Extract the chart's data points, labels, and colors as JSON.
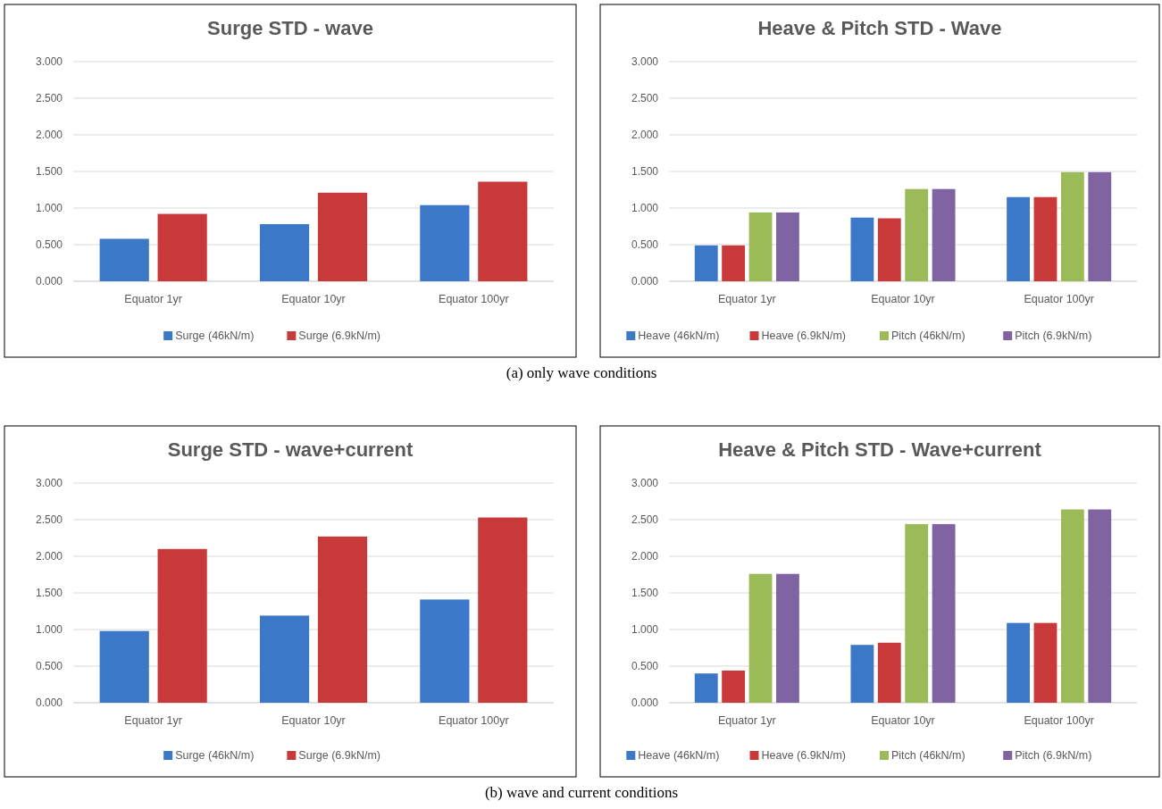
{
  "chart_data": [
    {
      "type": "bar",
      "title": "Surge STD - wave",
      "categories": [
        "Equator 1yr",
        "Equator 10yr",
        "Equator 100yr"
      ],
      "series": [
        {
          "name": "Surge (46kN/m)",
          "color": "#3c78c8",
          "values": [
            0.58,
            0.78,
            1.04
          ]
        },
        {
          "name": "Surge (6.9kN/m)",
          "color": "#c83a3a",
          "values": [
            0.92,
            1.21,
            1.36
          ]
        }
      ],
      "ylim": [
        0,
        3
      ],
      "yticks": [
        {
          "value": 0,
          "label": "0.000"
        },
        {
          "value": 0.5,
          "label": "0.500"
        },
        {
          "value": 1,
          "label": "1.000"
        },
        {
          "value": 1.5,
          "label": "1.500"
        },
        {
          "value": 2,
          "label": "2.000"
        },
        {
          "value": 2.5,
          "label": "2.500"
        },
        {
          "value": 3,
          "label": "3.000"
        }
      ],
      "grid": "y",
      "legend": "bottom",
      "annotations": [
        "(a) only wave conditions"
      ]
    },
    {
      "type": "bar",
      "title": "Heave & Pitch STD - Wave",
      "categories": [
        "Equator 1yr",
        "Equator 10yr",
        "Equator 100yr"
      ],
      "series": [
        {
          "name": "Heave (46kN/m)",
          "color": "#3c78c8",
          "values": [
            0.49,
            0.87,
            1.15
          ]
        },
        {
          "name": "Heave (6.9kN/m)",
          "color": "#c83a3a",
          "values": [
            0.49,
            0.86,
            1.15
          ]
        },
        {
          "name": "Pitch (46kN/m)",
          "color": "#9bbb59",
          "values": [
            0.94,
            1.26,
            1.49
          ]
        },
        {
          "name": "Pitch (6.9kN/m)",
          "color": "#8064a2",
          "values": [
            0.94,
            1.26,
            1.49
          ]
        }
      ],
      "ylim": [
        0,
        3
      ],
      "yticks": [
        {
          "value": 0,
          "label": "0.000"
        },
        {
          "value": 0.5,
          "label": "0.500"
        },
        {
          "value": 1,
          "label": "1.000"
        },
        {
          "value": 1.5,
          "label": "1.500"
        },
        {
          "value": 2,
          "label": "2.000"
        },
        {
          "value": 2.5,
          "label": "2.500"
        },
        {
          "value": 3,
          "label": "3.000"
        }
      ],
      "grid": "y",
      "legend": "bottom"
    },
    {
      "type": "bar",
      "title": "Surge STD - wave+current",
      "categories": [
        "Equator 1yr",
        "Equator 10yr",
        "Equator 100yr"
      ],
      "series": [
        {
          "name": "Surge (46kN/m)",
          "color": "#3c78c8",
          "values": [
            0.98,
            1.19,
            1.41
          ]
        },
        {
          "name": "Surge (6.9kN/m)",
          "color": "#c83a3a",
          "values": [
            2.1,
            2.27,
            2.53
          ]
        }
      ],
      "ylim": [
        0,
        3
      ],
      "yticks": [
        {
          "value": 0,
          "label": "0.000"
        },
        {
          "value": 0.5,
          "label": "0.500"
        },
        {
          "value": 1,
          "label": "1.000"
        },
        {
          "value": 1.5,
          "label": "1.500"
        },
        {
          "value": 2,
          "label": "2.000"
        },
        {
          "value": 2.5,
          "label": "2.500"
        },
        {
          "value": 3,
          "label": "3.000"
        }
      ],
      "grid": "y",
      "legend": "bottom",
      "annotations": [
        "(b) wave and current conditions"
      ]
    },
    {
      "type": "bar",
      "title": "Heave & Pitch STD - Wave+current",
      "categories": [
        "Equator 1yr",
        "Equator 10yr",
        "Equator 100yr"
      ],
      "series": [
        {
          "name": "Heave (46kN/m)",
          "color": "#3c78c8",
          "values": [
            0.4,
            0.79,
            1.09
          ]
        },
        {
          "name": "Heave (6.9kN/m)",
          "color": "#c83a3a",
          "values": [
            0.44,
            0.82,
            1.09
          ]
        },
        {
          "name": "Pitch (46kN/m)",
          "color": "#9bbb59",
          "values": [
            1.76,
            2.44,
            2.64
          ]
        },
        {
          "name": "Pitch (6.9kN/m)",
          "color": "#8064a2",
          "values": [
            1.76,
            2.44,
            2.64
          ]
        }
      ],
      "ylim": [
        0,
        3
      ],
      "yticks": [
        {
          "value": 0,
          "label": "0.000"
        },
        {
          "value": 0.5,
          "label": "0.500"
        },
        {
          "value": 1,
          "label": "1.000"
        },
        {
          "value": 1.5,
          "label": "1.500"
        },
        {
          "value": 2,
          "label": "2.000"
        },
        {
          "value": 2.5,
          "label": "2.500"
        },
        {
          "value": 3,
          "label": "3.000"
        }
      ],
      "grid": "y",
      "legend": "bottom"
    }
  ]
}
